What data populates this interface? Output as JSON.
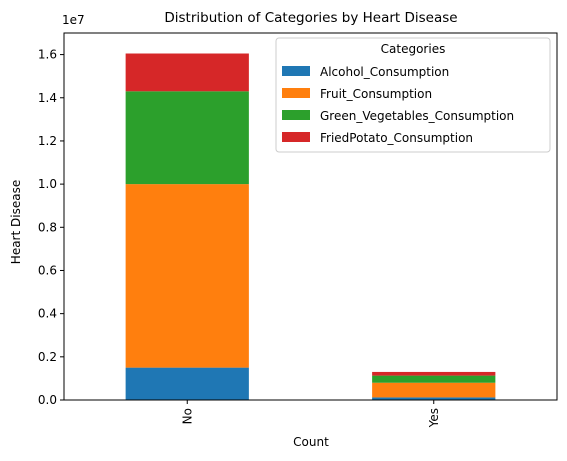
{
  "chart_data": {
    "type": "bar",
    "stacked": true,
    "title": "Distribution of Categories by Heart Disease",
    "xlabel": "Count",
    "ylabel": "Heart Disease",
    "y_scale_label": "1e7",
    "categories": [
      "No",
      "Yes"
    ],
    "ylim": [
      0,
      17000000.0
    ],
    "yticks": [
      0,
      2000000,
      4000000,
      6000000,
      8000000,
      10000000,
      12000000,
      14000000,
      16000000
    ],
    "ytick_labels": [
      "0.0",
      "0.2",
      "0.4",
      "0.6",
      "0.8",
      "1.0",
      "1.2",
      "1.4",
      "1.6"
    ],
    "series": [
      {
        "name": "Alcohol_Consumption",
        "color": "#1f77b4",
        "values": [
          1500000,
          120000
        ]
      },
      {
        "name": "Fruit_Consumption",
        "color": "#ff7f0e",
        "values": [
          8500000,
          680000
        ]
      },
      {
        "name": "Green_Vegetables_Consumption",
        "color": "#2ca02c",
        "values": [
          4300000,
          330000
        ]
      },
      {
        "name": "FriedPotato_Consumption",
        "color": "#d62728",
        "values": [
          1750000,
          170000
        ]
      }
    ],
    "legend": {
      "title": "Categories",
      "position": "top-right"
    },
    "grid": false
  }
}
